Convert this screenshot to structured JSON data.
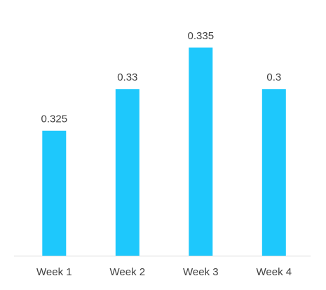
{
  "chart_data": {
    "type": "bar",
    "categories": [
      "Week 1",
      "Week 2",
      "Week 3",
      "Week 4"
    ],
    "values": [
      0.325,
      0.33,
      0.335,
      0.33
    ],
    "data_labels": [
      "0.325",
      "0.33",
      "0.335",
      "0.3"
    ],
    "title": "",
    "xlabel": "",
    "ylabel": "",
    "ylim": [
      0.31,
      0.337
    ],
    "grid": false,
    "legend": "none",
    "bar_color": "#1EC8FC",
    "axis_color": "#D9D9D9"
  }
}
